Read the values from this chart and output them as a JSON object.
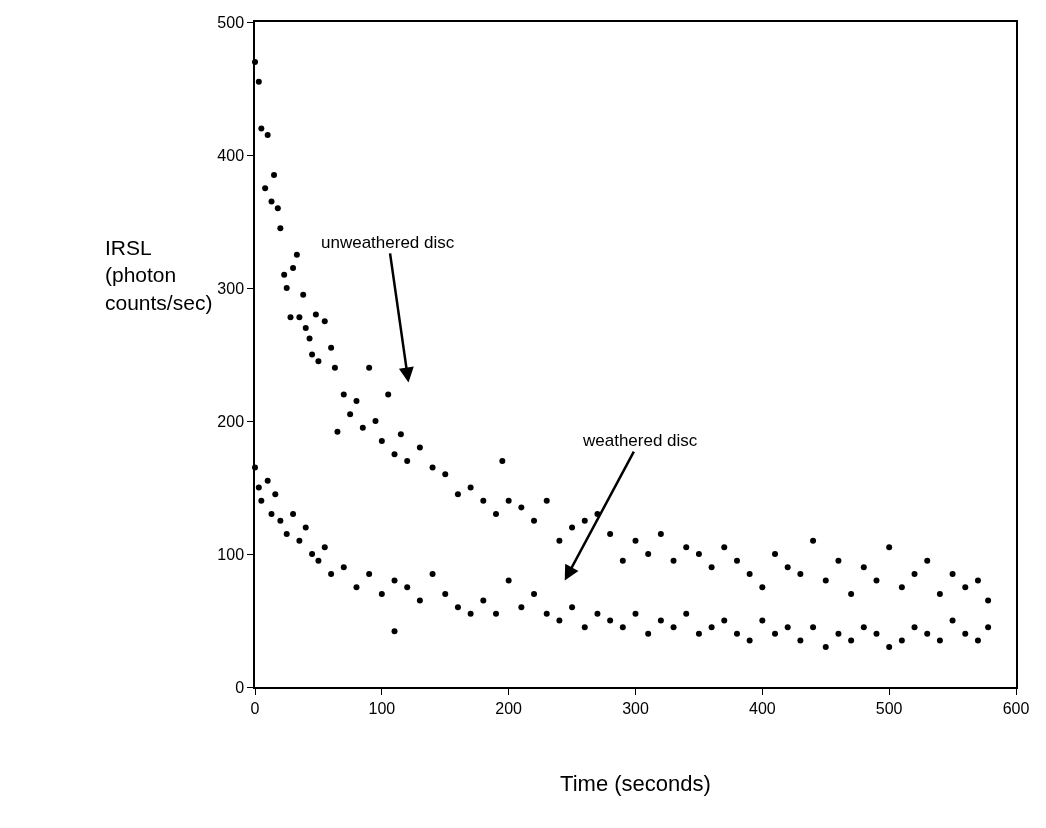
{
  "chart_data": {
    "type": "scatter",
    "xlabel": "Time (seconds)",
    "ylabel": "IRSL\n(photon\ncounts/sec)",
    "xlim": [
      0,
      600
    ],
    "xticks": [
      0,
      100,
      200,
      300,
      400,
      500,
      600
    ],
    "ylim": [
      0,
      500
    ],
    "yticks": [
      0,
      100,
      200,
      300,
      400,
      500
    ],
    "grid": false,
    "marker": "circle",
    "annotations": [
      "unweathered disc",
      "weathered disc"
    ],
    "series": [
      {
        "color": "#000000",
        "x": [
          0,
          3,
          5,
          8,
          10,
          13,
          15,
          18,
          20,
          23,
          25,
          28,
          30,
          33,
          35,
          38,
          40,
          43,
          45,
          48,
          50,
          55,
          60,
          63,
          65,
          70,
          75,
          80,
          85,
          90,
          95,
          100,
          105,
          110,
          115,
          120,
          130,
          140,
          150,
          160,
          170,
          180,
          190,
          195,
          200,
          210,
          220,
          230,
          240,
          250,
          260,
          270,
          280,
          290,
          300,
          310,
          320,
          330,
          340,
          350,
          360,
          370,
          380,
          390,
          400,
          410,
          420,
          430,
          440,
          450,
          460,
          470,
          480,
          490,
          500,
          510,
          520,
          530,
          540,
          550,
          560,
          570,
          578
        ],
        "values": [
          470,
          455,
          420,
          375,
          415,
          365,
          385,
          360,
          345,
          310,
          300,
          278,
          315,
          325,
          278,
          295,
          270,
          262,
          250,
          280,
          245,
          275,
          255,
          240,
          192,
          220,
          205,
          215,
          195,
          240,
          200,
          185,
          220,
          175,
          190,
          170,
          180,
          165,
          160,
          145,
          150,
          140,
          130,
          170,
          140,
          135,
          125,
          140,
          110,
          120,
          125,
          130,
          115,
          95,
          110,
          100,
          115,
          95,
          105,
          100,
          90,
          105,
          95,
          85,
          75,
          100,
          90,
          85,
          110,
          80,
          95,
          70,
          90,
          80,
          105,
          75,
          85,
          95,
          70,
          85,
          75,
          80,
          65
        ]
      },
      {
        "color": "#000000",
        "x": [
          0,
          3,
          5,
          10,
          13,
          16,
          20,
          25,
          30,
          35,
          40,
          45,
          50,
          55,
          60,
          70,
          80,
          90,
          100,
          110,
          110,
          120,
          130,
          140,
          150,
          160,
          170,
          180,
          190,
          200,
          210,
          220,
          230,
          240,
          250,
          260,
          270,
          280,
          290,
          300,
          310,
          320,
          330,
          340,
          350,
          360,
          370,
          380,
          390,
          400,
          410,
          420,
          430,
          440,
          450,
          460,
          470,
          480,
          490,
          500,
          510,
          520,
          530,
          540,
          550,
          560,
          570,
          578
        ],
        "values": [
          165,
          150,
          140,
          155,
          130,
          145,
          125,
          115,
          130,
          110,
          120,
          100,
          95,
          105,
          85,
          90,
          75,
          85,
          70,
          42,
          80,
          75,
          65,
          85,
          70,
          60,
          55,
          65,
          55,
          80,
          60,
          70,
          55,
          50,
          60,
          45,
          55,
          50,
          45,
          55,
          40,
          50,
          45,
          55,
          40,
          45,
          50,
          40,
          35,
          50,
          40,
          45,
          35,
          45,
          30,
          40,
          35,
          45,
          40,
          30,
          35,
          45,
          40,
          35,
          50,
          40,
          35,
          45
        ]
      }
    ]
  }
}
